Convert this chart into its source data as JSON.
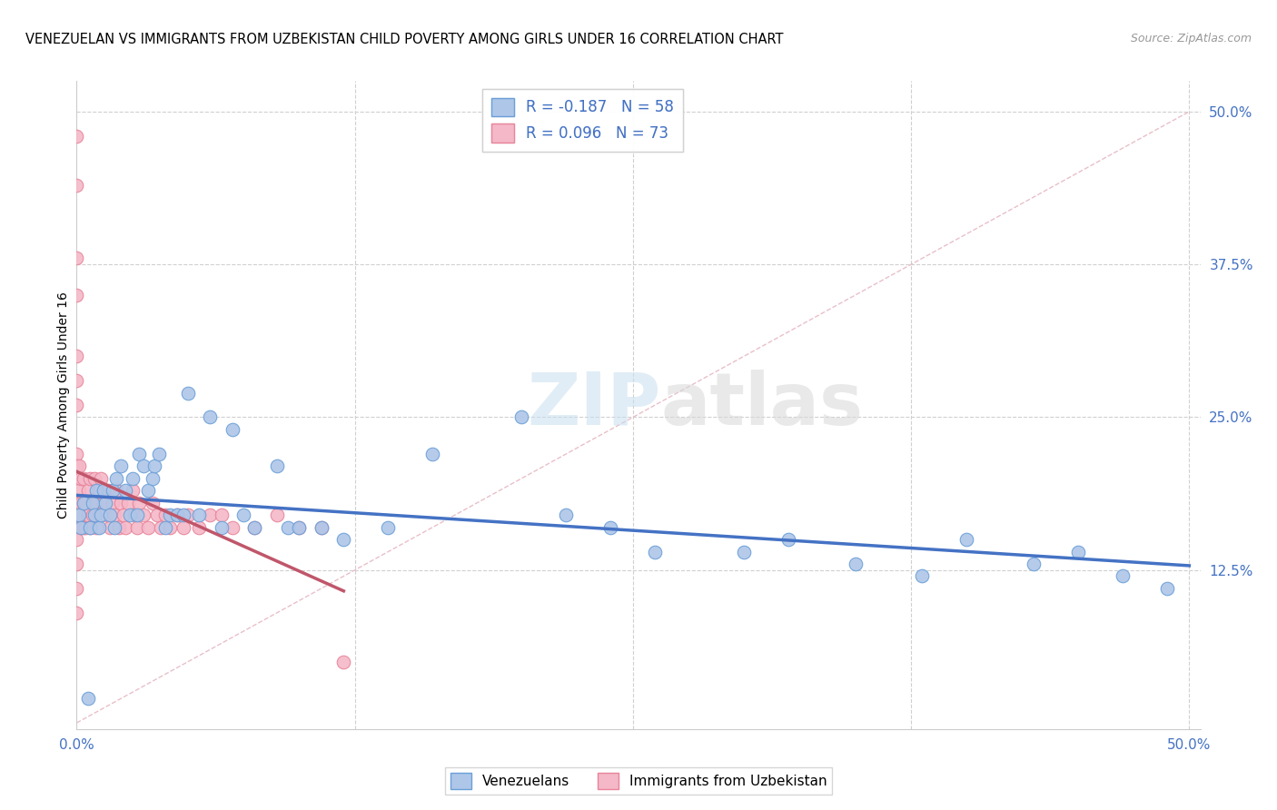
{
  "title": "VENEZUELAN VS IMMIGRANTS FROM UZBEKISTAN CHILD POVERTY AMONG GIRLS UNDER 16 CORRELATION CHART",
  "source": "Source: ZipAtlas.com",
  "ylabel": "Child Poverty Among Girls Under 16",
  "xlim": [
    0.0,
    0.505
  ],
  "ylim": [
    -0.005,
    0.525
  ],
  "ytick_right_labels": [
    "50.0%",
    "37.5%",
    "25.0%",
    "12.5%"
  ],
  "ytick_right_values": [
    0.5,
    0.375,
    0.25,
    0.125
  ],
  "watermark_zip": "ZIP",
  "watermark_atlas": "atlas",
  "legend_line1": "R = -0.187   N = 58",
  "legend_line2": "R = 0.096   N = 73",
  "venezuelan_color": "#aec6e8",
  "venezuelan_edge": "#6a9fd8",
  "uzbekistan_color": "#f4b8c8",
  "uzbekistan_edge": "#e8849a",
  "blue_line_color": "#4472c4",
  "pink_line_color": "#c0566a",
  "diag_line_color": "#e8c0c8",
  "grid_color": "#d0d0d0",
  "background_color": "#ffffff",
  "venezuelan_x": [
    0.001,
    0.002,
    0.003,
    0.005,
    0.006,
    0.007,
    0.008,
    0.009,
    0.01,
    0.011,
    0.012,
    0.013,
    0.015,
    0.016,
    0.017,
    0.018,
    0.02,
    0.022,
    0.024,
    0.025,
    0.027,
    0.028,
    0.03,
    0.032,
    0.034,
    0.035,
    0.037,
    0.04,
    0.042,
    0.045,
    0.048,
    0.05,
    0.055,
    0.06,
    0.065,
    0.07,
    0.075,
    0.08,
    0.09,
    0.095,
    0.1,
    0.11,
    0.12,
    0.14,
    0.16,
    0.2,
    0.22,
    0.24,
    0.26,
    0.3,
    0.32,
    0.35,
    0.38,
    0.4,
    0.43,
    0.45,
    0.47,
    0.49
  ],
  "venezuelan_y": [
    0.17,
    0.16,
    0.18,
    0.02,
    0.16,
    0.18,
    0.17,
    0.19,
    0.16,
    0.17,
    0.19,
    0.18,
    0.17,
    0.19,
    0.16,
    0.2,
    0.21,
    0.19,
    0.17,
    0.2,
    0.17,
    0.22,
    0.21,
    0.19,
    0.2,
    0.21,
    0.22,
    0.16,
    0.17,
    0.17,
    0.17,
    0.27,
    0.17,
    0.25,
    0.16,
    0.24,
    0.17,
    0.16,
    0.21,
    0.16,
    0.16,
    0.16,
    0.15,
    0.16,
    0.22,
    0.25,
    0.17,
    0.16,
    0.14,
    0.14,
    0.15,
    0.13,
    0.12,
    0.15,
    0.13,
    0.14,
    0.12,
    0.11
  ],
  "uzbekistan_x": [
    0.0,
    0.0,
    0.0,
    0.0,
    0.0,
    0.0,
    0.0,
    0.0,
    0.0,
    0.0,
    0.0,
    0.0,
    0.0,
    0.0,
    0.0,
    0.001,
    0.001,
    0.001,
    0.002,
    0.002,
    0.002,
    0.003,
    0.003,
    0.003,
    0.004,
    0.004,
    0.005,
    0.005,
    0.006,
    0.006,
    0.007,
    0.008,
    0.008,
    0.009,
    0.009,
    0.01,
    0.01,
    0.011,
    0.012,
    0.013,
    0.014,
    0.015,
    0.016,
    0.017,
    0.018,
    0.019,
    0.02,
    0.021,
    0.022,
    0.023,
    0.025,
    0.026,
    0.027,
    0.028,
    0.03,
    0.032,
    0.034,
    0.036,
    0.038,
    0.04,
    0.042,
    0.045,
    0.048,
    0.05,
    0.055,
    0.06,
    0.065,
    0.07,
    0.08,
    0.09,
    0.1,
    0.11,
    0.12
  ],
  "uzbekistan_y": [
    0.48,
    0.44,
    0.38,
    0.35,
    0.3,
    0.28,
    0.26,
    0.22,
    0.21,
    0.18,
    0.16,
    0.15,
    0.13,
    0.11,
    0.09,
    0.17,
    0.19,
    0.21,
    0.16,
    0.18,
    0.2,
    0.16,
    0.18,
    0.2,
    0.16,
    0.18,
    0.17,
    0.19,
    0.16,
    0.2,
    0.17,
    0.18,
    0.2,
    0.16,
    0.18,
    0.17,
    0.19,
    0.2,
    0.18,
    0.17,
    0.19,
    0.16,
    0.18,
    0.17,
    0.19,
    0.16,
    0.18,
    0.17,
    0.16,
    0.18,
    0.19,
    0.17,
    0.16,
    0.18,
    0.17,
    0.16,
    0.18,
    0.17,
    0.16,
    0.17,
    0.16,
    0.17,
    0.16,
    0.17,
    0.16,
    0.17,
    0.17,
    0.16,
    0.16,
    0.17,
    0.16,
    0.16,
    0.05
  ]
}
